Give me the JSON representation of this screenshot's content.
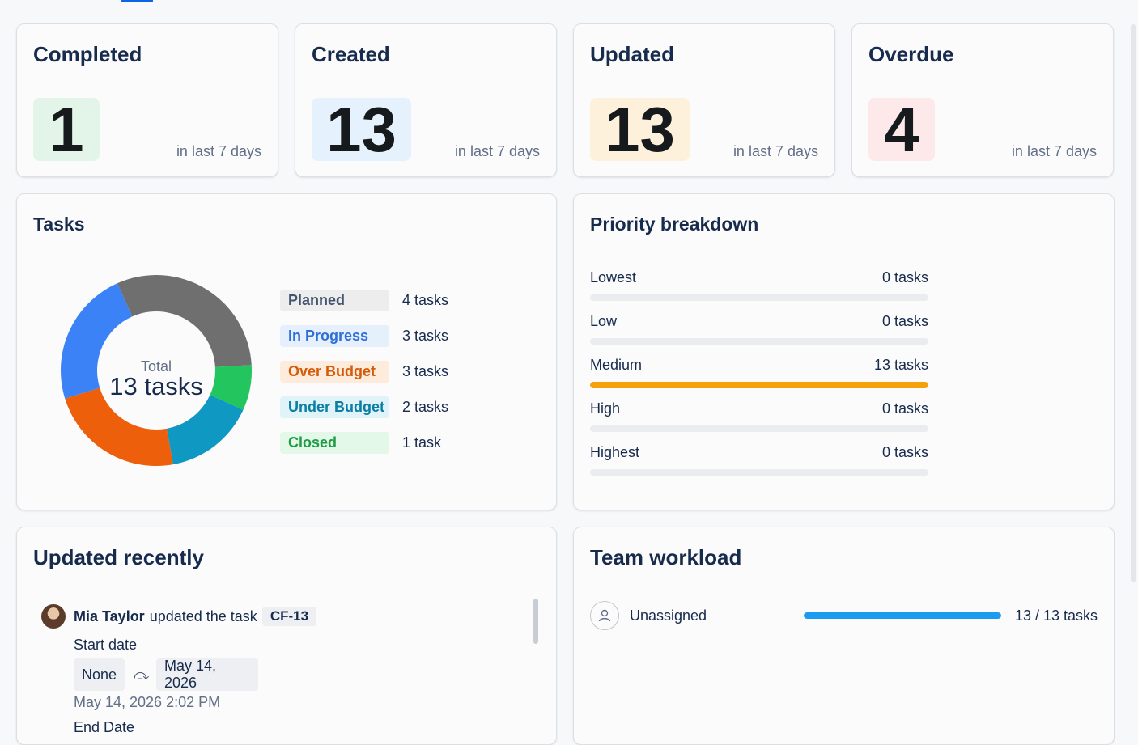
{
  "stats": {
    "completed": {
      "title": "Completed",
      "value": "1",
      "caption": "in last 7 days",
      "badge_color": "#e3f5e9"
    },
    "created": {
      "title": "Created",
      "value": "13",
      "caption": "in last 7 days",
      "badge_color": "#e5f2fd"
    },
    "updated": {
      "title": "Updated",
      "value": "13",
      "caption": "in last 7 days",
      "badge_color": "#fdf1dc"
    },
    "overdue": {
      "title": "Overdue",
      "value": "4",
      "caption": "in last 7 days",
      "badge_color": "#fde8ea"
    }
  },
  "tasks": {
    "title": "Tasks",
    "center_label": "Total",
    "center_value": "13 tasks",
    "chart_data": {
      "type": "pie",
      "total": 13,
      "segments": [
        {
          "name": "Planned",
          "value": 4,
          "count_label": "4 tasks",
          "color": "#6f6f6f",
          "pill_bg": "#ededed",
          "pill_text": "#44546f"
        },
        {
          "name": "Closed",
          "value": 1,
          "count_label": "1 task",
          "color": "#22c55e",
          "pill_bg": "#e3f8e8",
          "pill_text": "#1f9d45"
        },
        {
          "name": "Under Budget",
          "value": 2,
          "count_label": "2 tasks",
          "color": "#0e98c2",
          "pill_bg": "#e0f3f8",
          "pill_text": "#0b7ea3"
        },
        {
          "name": "Over Budget",
          "value": 3,
          "count_label": "3 tasks",
          "color": "#ee5f0b",
          "pill_bg": "#fdebdc",
          "pill_text": "#d45b0a"
        },
        {
          "name": "In Progress",
          "value": 3,
          "count_label": "3 tasks",
          "color": "#3b82f6",
          "pill_bg": "#e6f0fd",
          "pill_text": "#2e6fd8"
        }
      ]
    },
    "legend_order": [
      "Planned",
      "In Progress",
      "Over Budget",
      "Under Budget",
      "Closed"
    ]
  },
  "priority": {
    "title": "Priority breakdown",
    "items": [
      {
        "label": "Lowest",
        "count_label": "0 tasks",
        "count": 0
      },
      {
        "label": "Low",
        "count_label": "0 tasks",
        "count": 0
      },
      {
        "label": "Medium",
        "count_label": "13 tasks",
        "count": 13
      },
      {
        "label": "High",
        "count_label": "0 tasks",
        "count": 0
      },
      {
        "label": "Highest",
        "count_label": "0 tasks",
        "count": 0
      }
    ],
    "total": 13,
    "bar_color": "#f5a10a"
  },
  "recent": {
    "title": "Updated recently",
    "user": "Mia Taylor",
    "verb": "updated the task",
    "task_key": "CF-13",
    "field": "Start date",
    "from_value": "None",
    "to_value": "May 14, 2026",
    "timestamp": "May 14, 2026 2:02 PM",
    "next_field": "End Date",
    "arrow_icon": "redo-arrow-icon"
  },
  "workload": {
    "title": "Team workload",
    "assignee": "Unassigned",
    "count_label": "13 / 13 tasks",
    "progress": 1.0,
    "bar_color": "#1d9bf0"
  }
}
